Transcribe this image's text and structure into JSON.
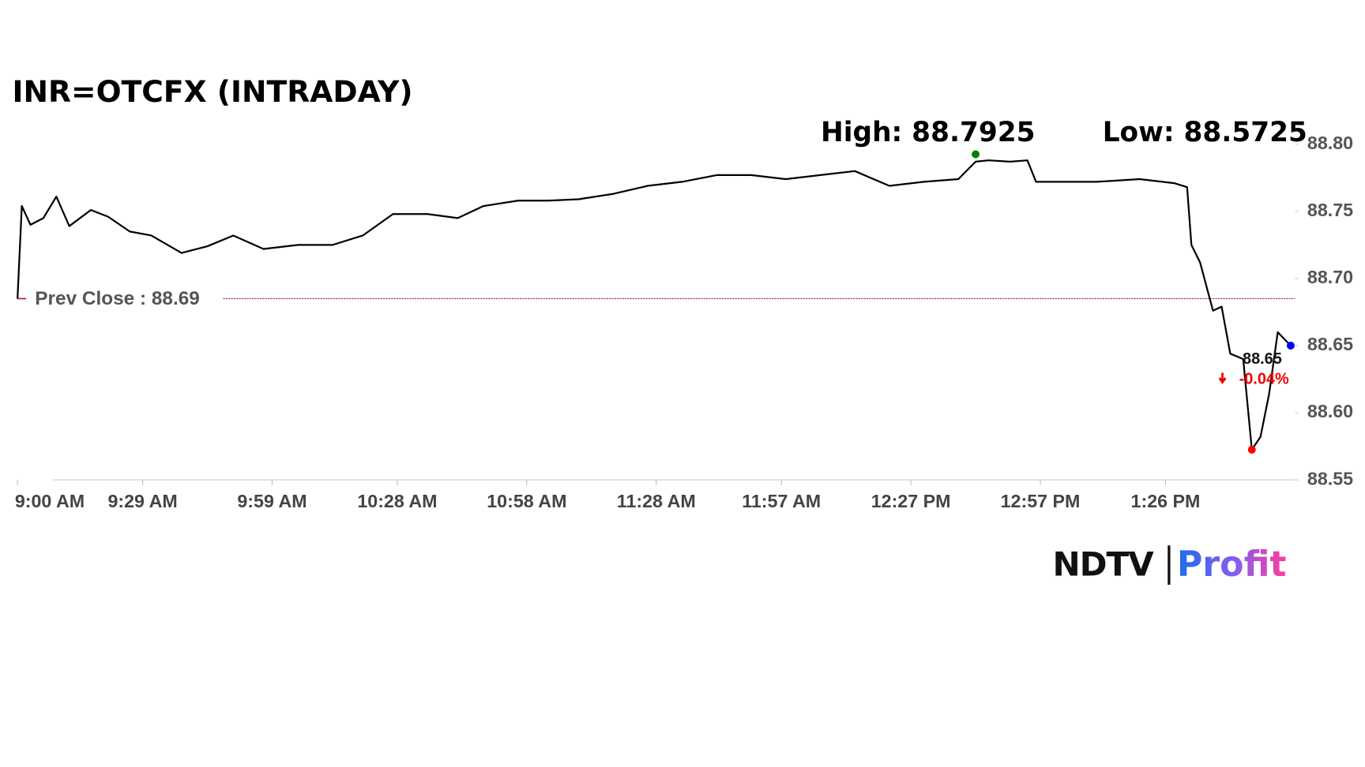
{
  "chart_data": {
    "type": "line",
    "title": "INR=OTCFX (INTRADAY)",
    "x": [
      "9:00 AM",
      "9:01 AM",
      "9:03 AM",
      "9:06 AM",
      "9:09 AM",
      "9:12 AM",
      "9:17 AM",
      "9:21 AM",
      "9:26 AM",
      "9:31 AM",
      "9:38 AM",
      "9:44 AM",
      "9:50 AM",
      "9:57 AM",
      "10:05 AM",
      "10:13 AM",
      "10:20 AM",
      "10:27 AM",
      "10:35 AM",
      "10:42 AM",
      "10:48 AM",
      "10:56 AM",
      "11:03 AM",
      "11:10 AM",
      "11:18 AM",
      "11:26 AM",
      "11:34 AM",
      "11:42 AM",
      "11:50 AM",
      "11:58 AM",
      "12:06 PM",
      "12:14 PM",
      "12:22 PM",
      "12:30 PM",
      "12:38 PM",
      "12:42 PM",
      "12:45 PM",
      "12:50 PM",
      "12:54 PM",
      "12:56 PM",
      "1:10 PM",
      "1:20 PM",
      "1:28 PM",
      "1:31 PM",
      "1:32 PM",
      "1:34 PM",
      "1:37 PM",
      "1:39 PM",
      "1:41 PM",
      "1:44 PM",
      "1:46 PM",
      "1:48 PM",
      "1:50 PM",
      "1:52 PM",
      "1:55 PM"
    ],
    "values": [
      88.685,
      88.754,
      88.74,
      88.745,
      88.761,
      88.739,
      88.751,
      88.746,
      88.735,
      88.732,
      88.719,
      88.724,
      88.732,
      88.722,
      88.725,
      88.725,
      88.732,
      88.748,
      88.748,
      88.745,
      88.754,
      88.758,
      88.758,
      88.759,
      88.763,
      88.769,
      88.772,
      88.777,
      88.777,
      88.774,
      88.777,
      88.78,
      88.769,
      88.772,
      88.774,
      88.787,
      88.788,
      88.787,
      88.788,
      88.772,
      88.772,
      88.774,
      88.771,
      88.768,
      88.725,
      88.712,
      88.676,
      88.679,
      88.644,
      88.64,
      88.5725,
      88.582,
      88.614,
      88.66,
      88.65
    ],
    "color": "#000000",
    "xlim": [
      "9:00 AM",
      "1:56 PM"
    ],
    "xticks": [
      "9:00 AM",
      "9:29 AM",
      "9:59 AM",
      "10:28 AM",
      "10:58 AM",
      "11:28 AM",
      "11:57 AM",
      "12:27 PM",
      "12:57 PM",
      "1:26 PM"
    ],
    "ylim": [
      88.55,
      88.8
    ],
    "yticks": [
      88.55,
      {
        "value": 88.6,
        "label": "88.60"
      },
      88.65,
      {
        "value": 88.7,
        "label": "88.70"
      },
      88.75,
      {
        "value": 88.8,
        "label": "88.80"
      }
    ],
    "prev_close": {
      "value": 88.685,
      "label": "Prev Close : 88.69",
      "color": "#a52a2a"
    },
    "high": {
      "value": 88.7925,
      "label": "High: 88.7925",
      "x": "12:42 PM",
      "color": "#008000"
    },
    "low": {
      "value": 88.5725,
      "label": "Low: 88.5725",
      "x": "1:46 PM",
      "color": "#ff0000"
    },
    "last": {
      "value": 88.65,
      "x": "1:55 PM",
      "color": "#0000ff"
    },
    "change": {
      "value": -0.04,
      "label": "-0.04%"
    }
  },
  "logo": {
    "brand": "NDTV",
    "product": "Profit"
  }
}
